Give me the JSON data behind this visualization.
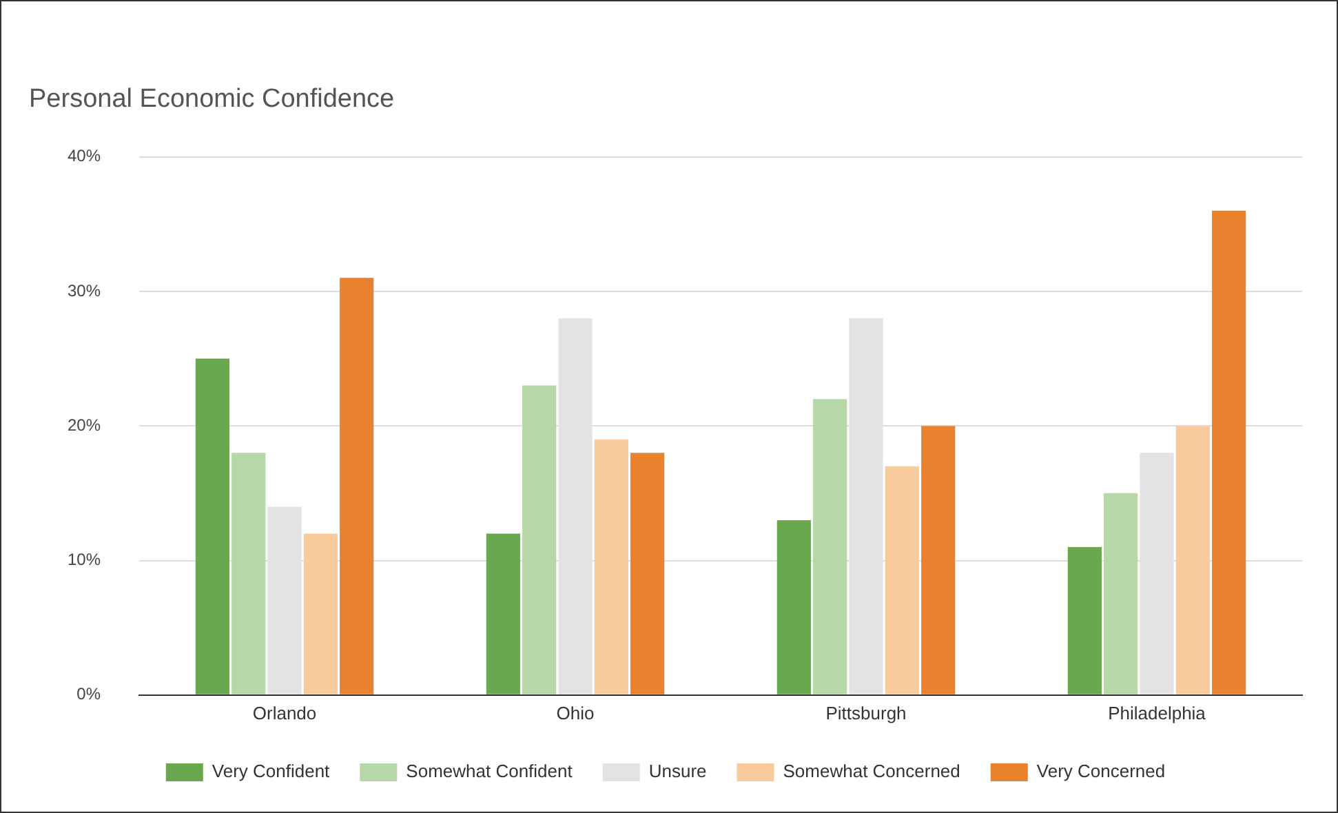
{
  "chart_data": {
    "type": "bar",
    "title": "Personal Economic Confidence",
    "categories": [
      "Orlando",
      "Ohio",
      "Pittsburgh",
      "Philadelphia"
    ],
    "series": [
      {
        "name": "Very Confident",
        "color": "#6aa84f",
        "values": [
          25,
          12,
          13,
          11
        ]
      },
      {
        "name": "Somewhat Confident",
        "color": "#b6d7a8",
        "values": [
          18,
          23,
          22,
          15
        ]
      },
      {
        "name": "Unsure",
        "color": "#e3e3e3",
        "values": [
          14,
          28,
          28,
          18
        ]
      },
      {
        "name": "Somewhat Concerned",
        "color": "#f9cb9c",
        "values": [
          12,
          19,
          17,
          20
        ]
      },
      {
        "name": "Very Concerned",
        "color": "#e8822f",
        "values": [
          31,
          18,
          20,
          36
        ]
      }
    ],
    "ylim": [
      0,
      40
    ],
    "yticks": [
      {
        "value": 0,
        "label": "0%"
      },
      {
        "value": 10,
        "label": "10%"
      },
      {
        "value": 20,
        "label": "20%"
      },
      {
        "value": 30,
        "label": "30%"
      },
      {
        "value": 40,
        "label": "40%"
      }
    ],
    "grid": "y",
    "legend": "bottom"
  }
}
